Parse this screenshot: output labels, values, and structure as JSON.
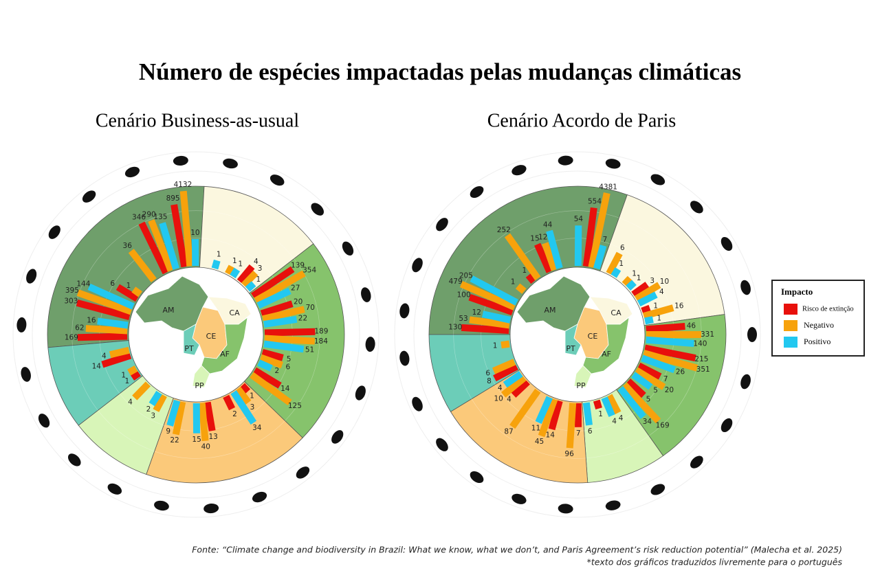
{
  "title": "Número de espécies impactadas pelas mudanças climáticas",
  "source": "Fonte: “Climate change and biodiversity in Brazil: What we know, what we don’t, and Paris Agreement’s risk reduction potential” (Malecha et al. 2025)",
  "note": "*texto dos gráficos traduzidos livremente para o português",
  "legend": {
    "title": "Impacto",
    "series": [
      {
        "name": "Risco de extinção",
        "color": "#e8100c"
      },
      {
        "name": "Negativo",
        "color": "#f7a20c"
      },
      {
        "name": "Positivo",
        "color": "#22c8f0"
      }
    ]
  },
  "chart_data": [
    {
      "type": "radial_bar",
      "title": "Cenário Business-as-usual",
      "log_scale": true,
      "map_labels": [
        "AM",
        "CA",
        "CE",
        "PT",
        "AF",
        "PP"
      ],
      "sectors": [
        {
          "color": "#6f9f6b",
          "groups": [
            {
              "values": [
                169,
                62,
                16
              ]
            },
            {
              "values": [
                303,
                395,
                144
              ]
            },
            {
              "values": [
                6,
                1,
                null
              ]
            },
            {
              "values": [
                null,
                36,
                null
              ]
            },
            {
              "values": [
                346,
                290,
                135
              ]
            },
            {
              "values": [
                895,
                4132,
                10
              ]
            }
          ]
        },
        {
          "color": "#fbf7df",
          "groups": [
            {
              "values": [
                null,
                null,
                1
              ]
            },
            {
              "values": [
                null,
                1,
                1
              ]
            },
            {
              "values": [
                4,
                3,
                1
              ]
            }
          ]
        },
        {
          "color": "#86c36c",
          "groups": [
            {
              "values": [
                139,
                354,
                27
              ]
            },
            {
              "values": [
                20,
                70,
                22
              ]
            },
            {
              "values": [
                189,
                184,
                51
              ]
            },
            {
              "values": [
                5,
                6,
                2
              ]
            },
            {
              "values": [
                14,
                125,
                null
              ]
            }
          ]
        },
        {
          "color": "#fbc97a",
          "groups": [
            {
              "values": [
                1,
                3,
                34
              ]
            },
            {
              "values": [
                2,
                null,
                null
              ]
            },
            {
              "values": [
                13,
                40,
                15
              ]
            },
            {
              "values": [
                null,
                22,
                9
              ]
            }
          ]
        },
        {
          "color": "#d8f5b8",
          "groups": [
            {
              "values": [
                null,
                3,
                2
              ]
            },
            {
              "values": [
                null,
                4,
                null
              ]
            }
          ]
        },
        {
          "color": "#6ccdb8",
          "groups": [
            {
              "values": [
                1,
                1,
                null
              ]
            },
            {
              "values": [
                14,
                4,
                null
              ]
            }
          ]
        }
      ]
    },
    {
      "type": "radial_bar",
      "title": "Cenário Acordo de Paris",
      "log_scale": true,
      "map_labels": [
        "AM",
        "CA",
        "CE",
        "PT",
        "AF",
        "PP"
      ],
      "sectors": [
        {
          "color": "#6f9f6b",
          "groups": [
            {
              "values": [
                130,
                53,
                12
              ]
            },
            {
              "values": [
                100,
                479,
                205
              ]
            },
            {
              "values": [
                null,
                1,
                null
              ]
            },
            {
              "values": [
                1,
                252,
                null
              ]
            },
            {
              "values": [
                15,
                12,
                44
              ]
            },
            {
              "values": [
                null,
                null,
                54
              ]
            },
            {
              "values": [
                554,
                4381,
                7
              ]
            }
          ]
        },
        {
          "color": "#fbf7df",
          "groups": [
            {
              "values": [
                null,
                6,
                1
              ]
            },
            {
              "values": [
                null,
                1,
                1
              ]
            },
            {
              "values": [
                3,
                10,
                4
              ]
            },
            {
              "values": [
                1,
                16,
                1
              ]
            }
          ]
        },
        {
          "color": "#86c36c",
          "groups": [
            {
              "values": [
                46,
                331,
                140
              ]
            },
            {
              "values": [
                215,
                351,
                26
              ]
            },
            {
              "values": [
                7,
                20,
                5
              ]
            },
            {
              "values": [
                5,
                169,
                34
              ]
            }
          ]
        },
        {
          "color": "#d8f5b8",
          "groups": [
            {
              "values": [
                null,
                4,
                4
              ]
            },
            {
              "values": [
                1,
                null,
                6
              ]
            }
          ]
        },
        {
          "color": "#fbc97a",
          "groups": [
            {
              "values": [
                7,
                96,
                null
              ]
            },
            {
              "values": [
                14,
                45,
                11
              ]
            },
            {
              "values": [
                null,
                87,
                null
              ]
            },
            {
              "values": [
                4,
                10,
                4
              ]
            }
          ]
        },
        {
          "color": "#6ccdb8",
          "groups": [
            {
              "values": [
                8,
                6,
                null
              ]
            },
            {
              "values": [
                null,
                1,
                null
              ]
            }
          ]
        }
      ]
    }
  ]
}
